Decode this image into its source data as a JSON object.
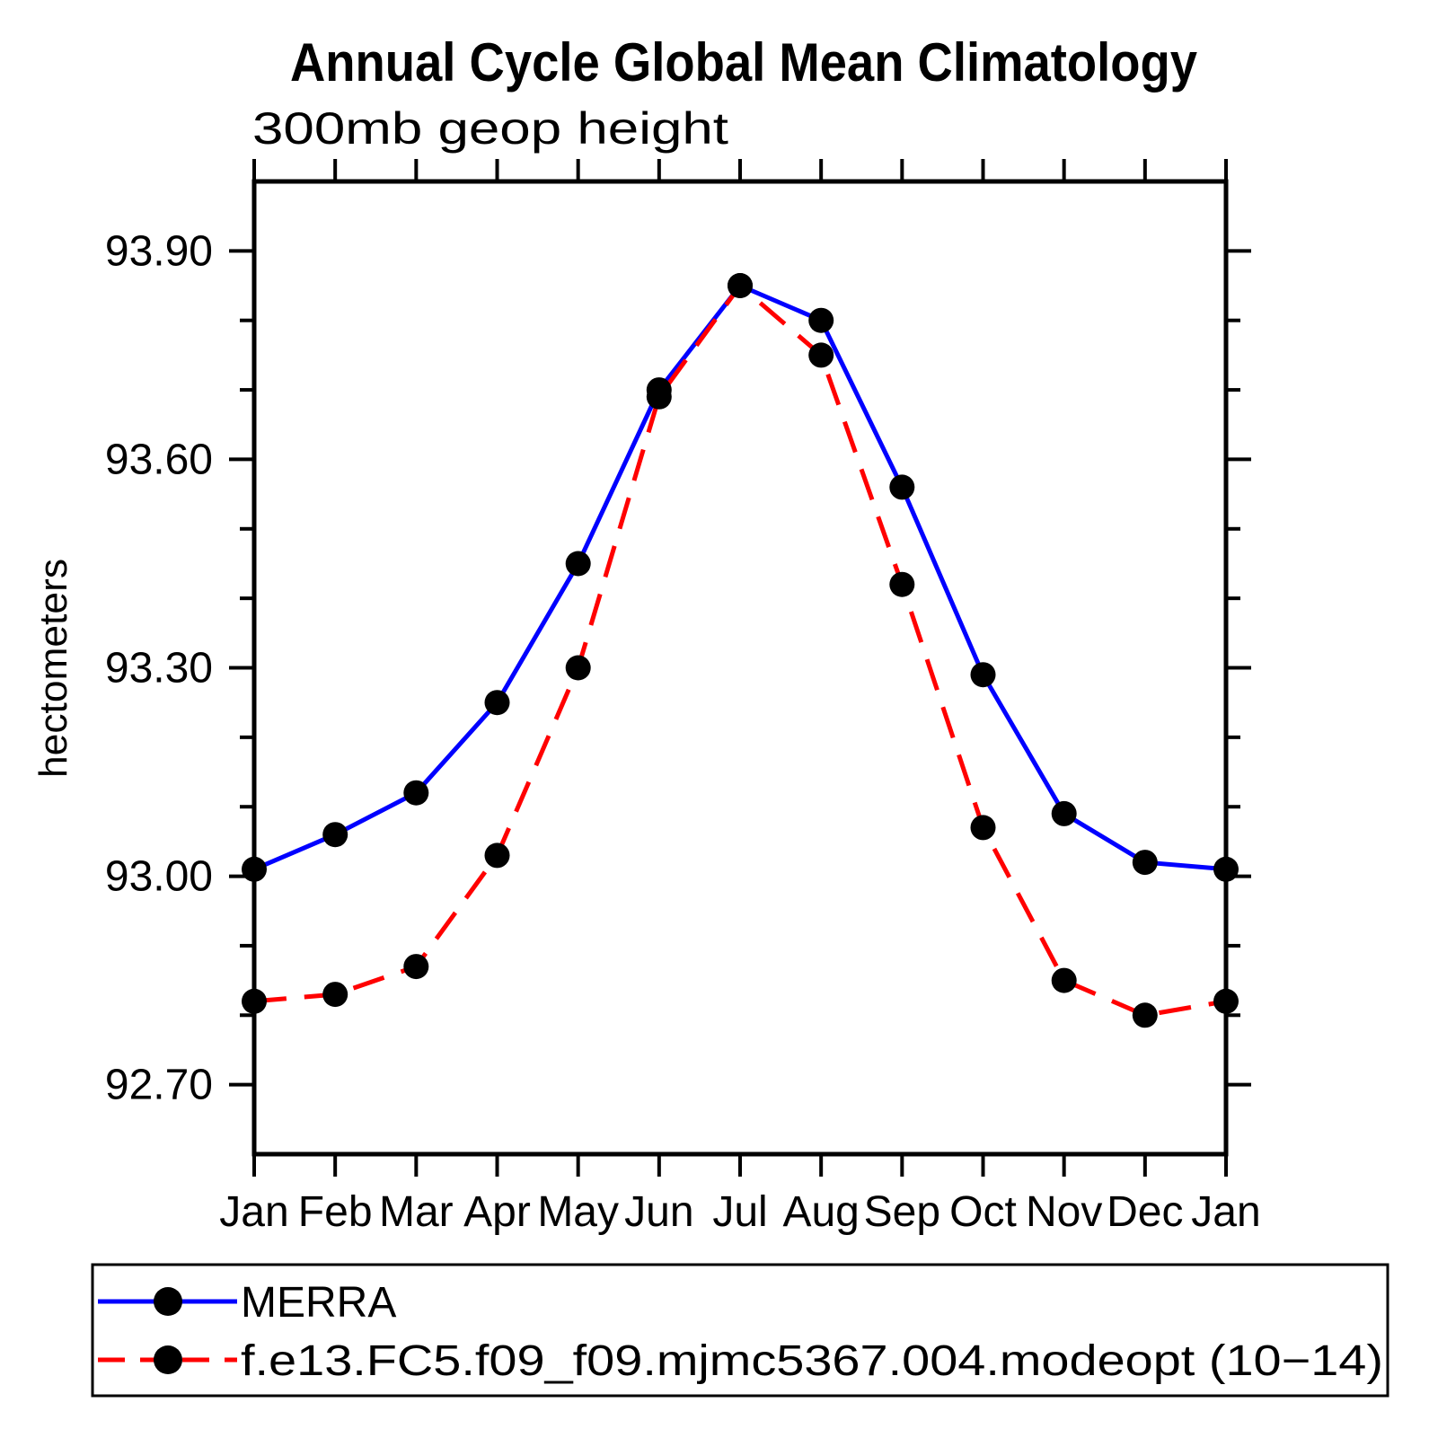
{
  "title": "Annual Cycle Global Mean Climatology",
  "subtitle": "300mb geop height",
  "ylabel": "hectometers",
  "colors": {
    "series1": "#0000ff",
    "series2": "#ff0000",
    "marker": "#000000",
    "axis": "#000000",
    "background": "#ffffff"
  },
  "chart_data": {
    "type": "line",
    "title": "Annual Cycle Global Mean Climatology",
    "subtitle": "300mb geop height",
    "xlabel": "",
    "ylabel": "hectometers",
    "categories": [
      "Jan",
      "Feb",
      "Mar",
      "Apr",
      "May",
      "Jun",
      "Jul",
      "Aug",
      "Sep",
      "Oct",
      "Nov",
      "Dec",
      "Jan"
    ],
    "series": [
      {
        "name": "MERRA",
        "color": "#0000ff",
        "line_style": "solid",
        "marker": "filled-circle",
        "marker_color": "#000000",
        "values": [
          93.01,
          93.06,
          93.12,
          93.25,
          93.45,
          93.7,
          93.85,
          93.8,
          93.56,
          93.29,
          93.09,
          93.02,
          93.01
        ]
      },
      {
        "name": "f.e13.FC5.f09_f09.mjmc5367.004.modeopt (10−14)",
        "color": "#ff0000",
        "line_style": "dashed",
        "marker": "filled-circle",
        "marker_color": "#000000",
        "values": [
          92.82,
          92.83,
          92.87,
          93.03,
          93.3,
          93.69,
          93.85,
          93.75,
          93.42,
          93.07,
          92.85,
          92.8,
          92.82
        ]
      }
    ],
    "ylim": [
      92.6,
      94.0
    ],
    "yticks_major": [
      92.7,
      93.0,
      93.3,
      93.6,
      93.9
    ],
    "ytick_labels": [
      "92.70",
      "93.00",
      "93.30",
      "93.60",
      "93.90"
    ],
    "yticks_minor": [
      92.8,
      92.9,
      93.1,
      93.2,
      93.4,
      93.5,
      93.7,
      93.8
    ],
    "grid": false,
    "legend_position": "bottom",
    "ticks_direction": "outward-all-four-sides"
  }
}
